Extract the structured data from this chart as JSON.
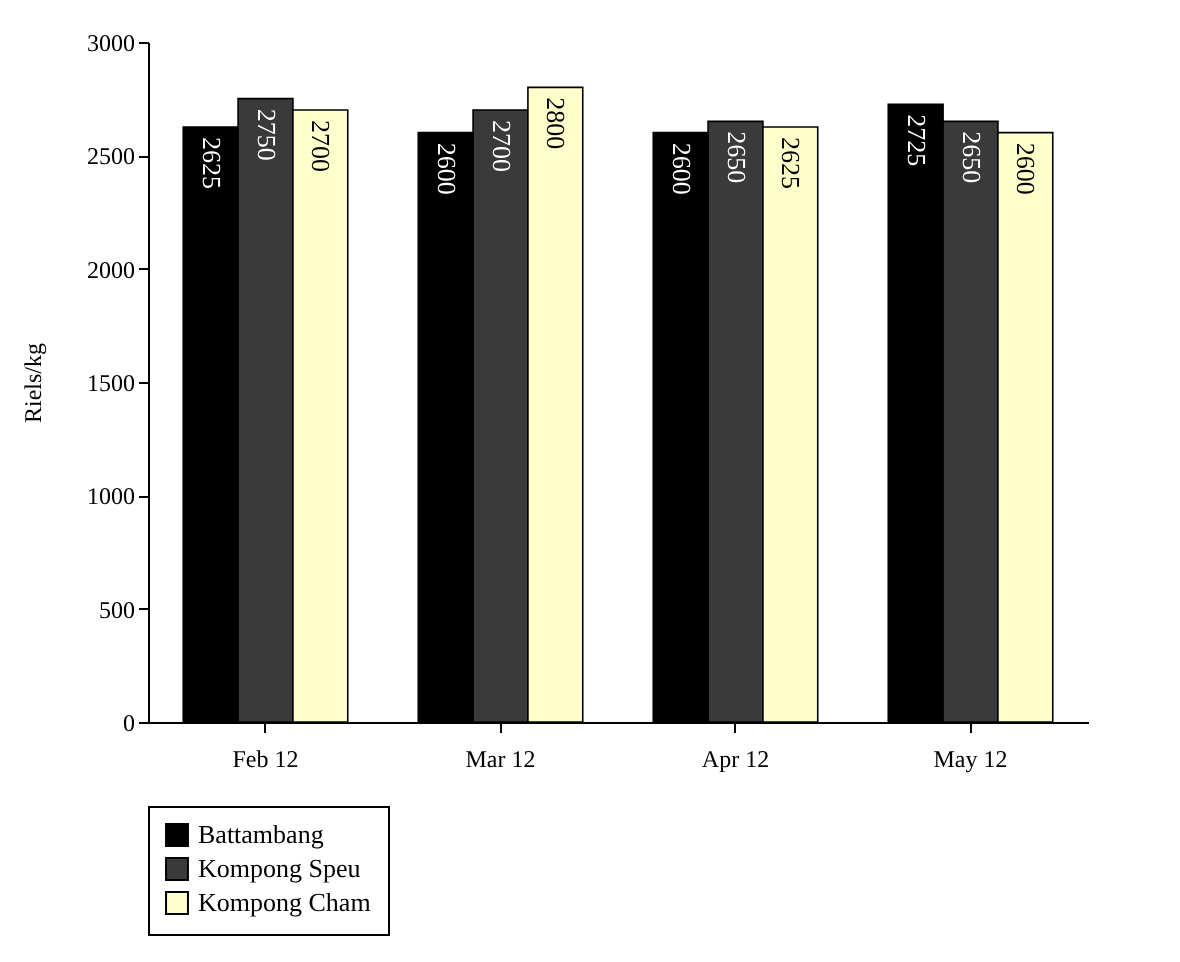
{
  "chart_data": {
    "type": "bar",
    "ylabel": "Riels/kg",
    "categories": [
      "Feb 12",
      "Mar 12",
      "Apr 12",
      "May 12"
    ],
    "series": [
      {
        "name": "Battambang",
        "color": "#000000",
        "values": [
          2625,
          2600,
          2600,
          2725
        ]
      },
      {
        "name": "Kompong Speu",
        "color": "#3a3a3a",
        "values": [
          2750,
          2700,
          2650,
          2650
        ]
      },
      {
        "name": "Kompong Cham",
        "color": "#ffffcc",
        "values": [
          2700,
          2800,
          2625,
          2600
        ]
      }
    ],
    "ylim": [
      0,
      3000
    ],
    "yticks": [
      0,
      500,
      1000,
      1500,
      2000,
      2500,
      3000
    ],
    "grid": false,
    "legend": "bottom",
    "data_labels": true
  }
}
